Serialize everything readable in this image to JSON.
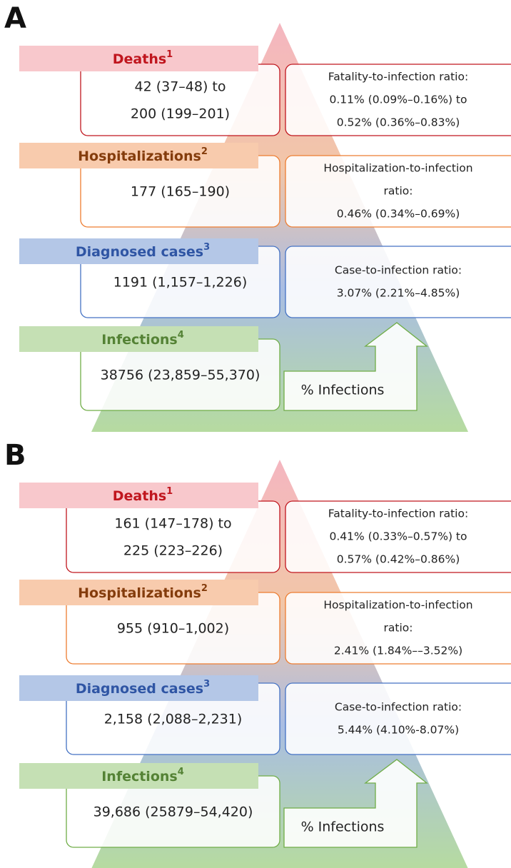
{
  "panels": [
    {
      "label": "A",
      "arrow": "% Infections",
      "levels": [
        {
          "title": "Deaths",
          "note": "1",
          "value": [
            "42 (37–48) to",
            "200 (199–201)"
          ],
          "ratio": [
            "Fatality-to-infection ratio:",
            "0.11% (0.09%–0.16%) to",
            "0.52% (0.36%–0.83%)"
          ]
        },
        {
          "title": "Hospitalizations",
          "note": "2",
          "value": [
            "177 (165–190)"
          ],
          "ratio": [
            "Hospitalization-to-infection",
            "ratio:",
            "0.46% (0.34%–0.69%)"
          ]
        },
        {
          "title": "Diagnosed cases",
          "note": "3",
          "value": [
            "1191 (1,157–1,226)"
          ],
          "ratio": [
            "Case-to-infection ratio:",
            "3.07% (2.21%–4.85%)"
          ]
        },
        {
          "title": "Infections",
          "note": "4",
          "value": [
            "38756 (23,859–55,370)"
          ]
        }
      ]
    },
    {
      "label": "B",
      "arrow": "% Infections",
      "levels": [
        {
          "title": "Deaths",
          "note": "1",
          "value": [
            "161 (147–178) to",
            "225 (223–226)"
          ],
          "ratio": [
            "Fatality-to-infection ratio:",
            "0.41% (0.33%–0.57%) to",
            "0.57% (0.42%–0.86%)"
          ]
        },
        {
          "title": "Hospitalizations",
          "note": "2",
          "value": [
            "955 (910–1,002)"
          ],
          "ratio": [
            "Hospitalization-to-infection",
            "ratio:",
            "2.41% (1.84%––3.52%)"
          ]
        },
        {
          "title": "Diagnosed cases",
          "note": "3",
          "value": [
            "2,158 (2,088–2,231)"
          ],
          "ratio": [
            "Case-to-infection ratio:",
            "5.44% (4.10%-8.07%)"
          ]
        },
        {
          "title": "Infections",
          "note": "4",
          "value": [
            "39,686 (25879–54,420)"
          ]
        }
      ]
    }
  ]
}
